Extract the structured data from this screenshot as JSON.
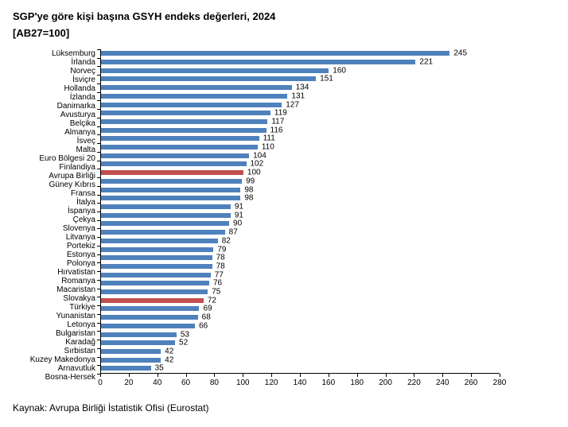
{
  "chart_data": {
    "type": "bar",
    "orientation": "horizontal",
    "title": "SGP'ye göre kişi başına GSYH endeks değerleri, 2024",
    "subtitle": "[AB27=100]",
    "source": "Kaynak: Avrupa Birliği İstatistik Ofisi (Eurostat)",
    "categories": [
      "Lüksemburg",
      "İrlanda",
      "Norveç",
      "İsviçre",
      "Hollanda",
      "İzlanda",
      "Danimarka",
      "Avusturya",
      "Belçika",
      "Almanya",
      "İsveç",
      "Malta",
      "Euro Bölgesi 20",
      "Finlandiya",
      "Avrupa Birliği",
      "Güney Kıbrıs",
      "Fransa",
      "İtalya",
      "İspanya",
      "Çekya",
      "Slovenya",
      "Litvanya",
      "Portekiz",
      "Estonya",
      "Polonya",
      "Hırvatistan",
      "Romanya",
      "Macaristan",
      "Slovakya",
      "Türkiye",
      "Yunanistan",
      "Letonya",
      "Bulgaristan",
      "Karadağ",
      "Sırbistan",
      "Kuzey Makedonya",
      "Arnavutluk",
      "Bosna-Hersek"
    ],
    "values": [
      245,
      221,
      160,
      151,
      134,
      131,
      127,
      119,
      117,
      116,
      111,
      110,
      104,
      102,
      100,
      99,
      98,
      98,
      91,
      91,
      90,
      87,
      82,
      79,
      78,
      78,
      77,
      76,
      75,
      72,
      69,
      68,
      66,
      53,
      52,
      42,
      42,
      35
    ],
    "highlight_categories": [
      "Avrupa Birliği",
      "Türkiye"
    ],
    "colors": {
      "bar": "#4F81BD",
      "highlight": "#C0504D",
      "axis": "#000000",
      "text": "#000000"
    },
    "xlim": [
      0,
      280
    ],
    "x_ticks": [
      0,
      20,
      40,
      60,
      80,
      100,
      120,
      140,
      160,
      180,
      200,
      220,
      240,
      260,
      280
    ],
    "xlabel": "",
    "ylabel": "",
    "grid": false,
    "legend": "none",
    "value_labels": true
  }
}
